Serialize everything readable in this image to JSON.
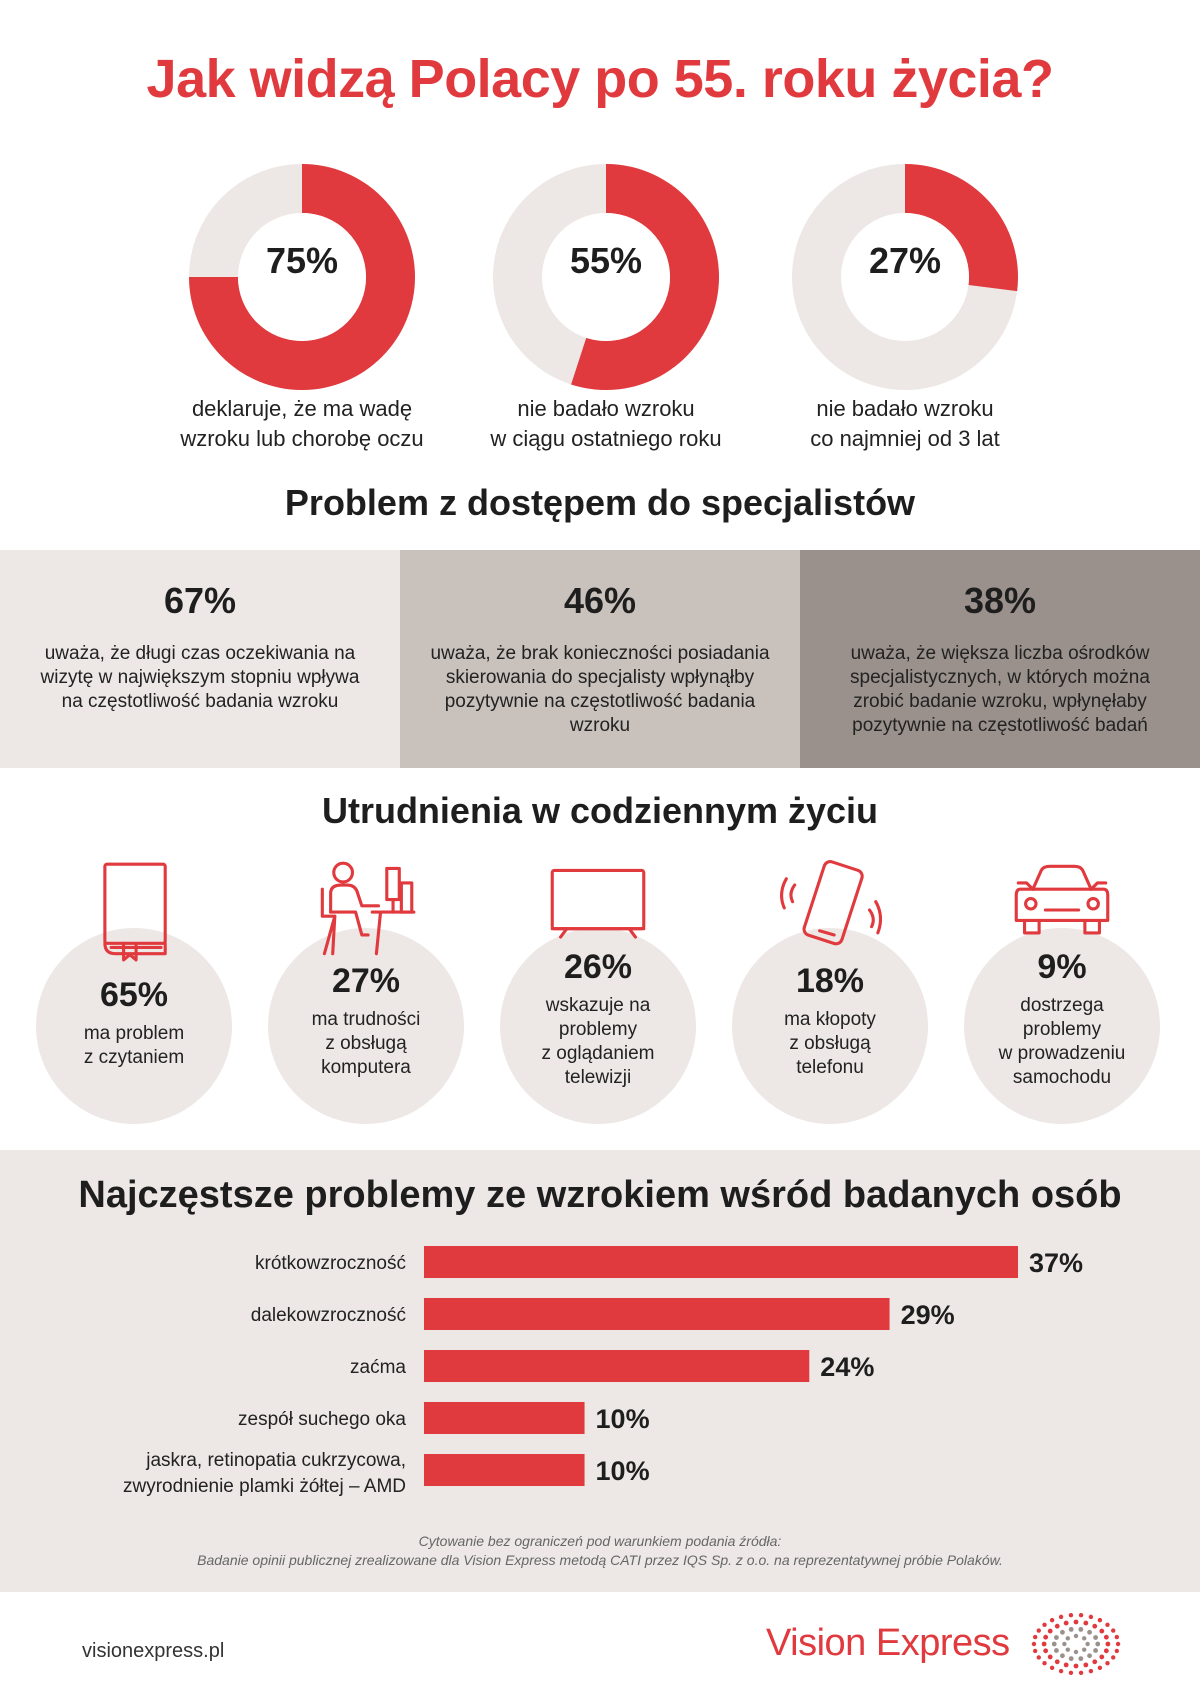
{
  "title": "Jak widzą Polacy po 55. roku życia?",
  "colors": {
    "accent": "#e13a3e",
    "ring_bg": "#ede8e6",
    "panel_1": "#ede8e6",
    "panel_2": "#c9c1bc",
    "panel_3": "#9a918c"
  },
  "stats": [
    {
      "value": "75%",
      "caption_1": "deklaruje, że ma wadę",
      "caption_2": "wzroku lub chorobę oczu"
    },
    {
      "value": "55%",
      "caption_1": "nie badało wzroku",
      "caption_2": "w ciągu ostatniego roku"
    },
    {
      "value": "27%",
      "caption_1": "nie badało wzroku",
      "caption_2": "co najmniej od 3 lat"
    }
  ],
  "access_section": {
    "title": "Problem z dostępem do specjalistów",
    "items": [
      {
        "value": "67%",
        "text": "uważa, że długi czas oczekiwania na wizytę w największym stopniu wpływa na częstotliwość badania wzroku"
      },
      {
        "value": "46%",
        "text": "uważa, że brak konieczności posiadania skierowania do specjalisty wpłynąłby pozytywnie na częstotliwość badania wzroku"
      },
      {
        "value": "38%",
        "text": "uważa, że większa liczba ośrodków specjalistycznych, w których można zrobić badanie wzroku, wpłynęłaby pozytywnie na częstotliwość badań"
      }
    ]
  },
  "daily_section": {
    "title": "Utrudnienia w codziennym życiu",
    "items": [
      {
        "icon": "book-icon",
        "value": "65%",
        "line_1": "ma problem",
        "line_2": "z czytaniem",
        "line_3": "",
        "line_4": ""
      },
      {
        "icon": "computer-user-icon",
        "value": "27%",
        "line_1": "ma trudności",
        "line_2": "z obsługą",
        "line_3": "komputera",
        "line_4": ""
      },
      {
        "icon": "tv-icon",
        "value": "26%",
        "line_1": "wskazuje na",
        "line_2": "problemy",
        "line_3": "z oglądaniem",
        "line_4": "telewizji"
      },
      {
        "icon": "phone-icon",
        "value": "18%",
        "line_1": "ma kłopoty",
        "line_2": "z obsługą",
        "line_3": "telefonu",
        "line_4": ""
      },
      {
        "icon": "car-icon",
        "value": "9%",
        "line_1": "dostrzega",
        "line_2": "problemy",
        "line_3": "w prowadzeniu",
        "line_4": "samochodu"
      }
    ]
  },
  "chart_data": [
    {
      "type": "pie",
      "title": "",
      "values": [
        75,
        25
      ],
      "labels": [
        "deklaruje, że ma wadę wzroku lub chorobę oczu",
        ""
      ]
    },
    {
      "type": "pie",
      "title": "",
      "values": [
        55,
        45
      ],
      "labels": [
        "nie badało wzroku w ciągu ostatniego roku",
        ""
      ]
    },
    {
      "type": "pie",
      "title": "",
      "values": [
        27,
        73
      ],
      "labels": [
        "nie badało wzroku co najmniej od 3 lat",
        ""
      ]
    },
    {
      "type": "bar",
      "orientation": "horizontal",
      "title": "Najczęstsze problemy ze wzrokiem wśród badanych osób",
      "categories": [
        "krótkowzroczność",
        "dalekowzroczność",
        "zaćma",
        "zespół suchego oka",
        "jaskra, retinopatia cukrzycowa, zwyrodnienie plamki żółtej – AMD"
      ],
      "category_lines": [
        [
          "krótkowzroczność"
        ],
        [
          "dalekowzroczność"
        ],
        [
          "zaćma"
        ],
        [
          "zespół suchego oka"
        ],
        [
          "jaskra, retinopatia cukrzycowa,",
          "zwyrodnienie plamki żółtej – AMD"
        ]
      ],
      "values": [
        37,
        29,
        24,
        10,
        10
      ],
      "value_labels": [
        "37%",
        "29%",
        "24%",
        "10%",
        "10%"
      ],
      "xlim": [
        0,
        37
      ],
      "grid": false,
      "color": "#e13a3e"
    }
  ],
  "source_1": "Cytowanie bez ograniczeń pod warunkiem podania źródła:",
  "source_2": "Badanie opinii publicznej zrealizowane dla Vision Express metodą CATI przez IQS Sp. z o.o. na reprezentatywnej próbie Polaków.",
  "website": "visionexpress.pl",
  "brand": "Vision Express"
}
